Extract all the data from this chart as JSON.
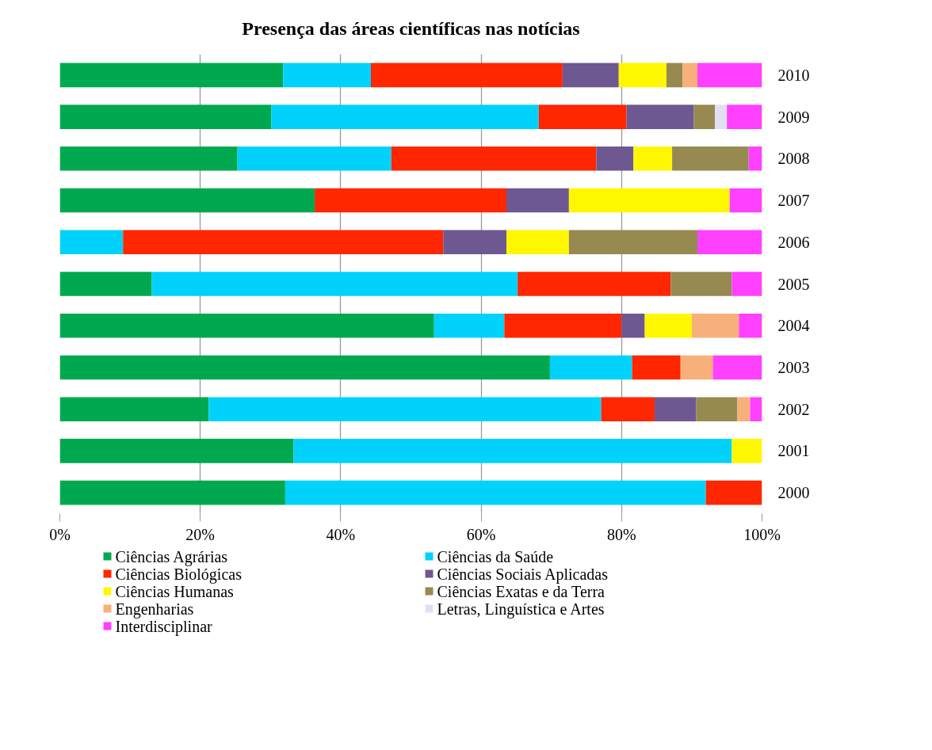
{
  "chart_data": {
    "type": "bar",
    "orientation": "horizontal",
    "stacked": true,
    "title": "Presença das áreas científicas nas notícias",
    "categories": [
      "2010",
      "2009",
      "2008",
      "2007",
      "2006",
      "2005",
      "2004",
      "2003",
      "2002",
      "2001",
      "2000"
    ],
    "series": [
      {
        "name": "Ciências Agrárias",
        "color": "#00a94f",
        "values": [
          31.8,
          30.1,
          25.3,
          36.3,
          null,
          13.1,
          53.3,
          69.8,
          21.2,
          33.3,
          32.1
        ]
      },
      {
        "name": "Ciências da Saúde",
        "color": "#00d2fc",
        "values": [
          12.5,
          38.1,
          21.9,
          null,
          9.0,
          52.1,
          10.0,
          11.7,
          55.9,
          62.4,
          59.9
        ]
      },
      {
        "name": "Ciências Biológicas",
        "color": "#ff2600",
        "values": [
          27.3,
          12.5,
          29.2,
          27.3,
          45.6,
          21.8,
          16.7,
          6.9,
          7.6,
          null,
          8.0
        ]
      },
      {
        "name": "Ciências Sociais Aplicadas",
        "color": "#6e5891",
        "values": [
          8.0,
          9.6,
          5.3,
          8.9,
          9.0,
          null,
          3.3,
          null,
          5.9,
          null,
          null
        ]
      },
      {
        "name": "Ciências Humanas",
        "color": "#fff700",
        "values": [
          6.8,
          null,
          5.5,
          22.9,
          8.9,
          null,
          6.7,
          null,
          null,
          4.3,
          null
        ]
      },
      {
        "name": "Ciências Exatas e da Terra",
        "color": "#968a51",
        "values": [
          2.3,
          3.0,
          10.9,
          null,
          18.3,
          8.7,
          null,
          null,
          5.9,
          null,
          null
        ]
      },
      {
        "name": "Engenharias",
        "color": "#f8b07a",
        "values": [
          2.1,
          null,
          null,
          null,
          null,
          null,
          6.7,
          4.6,
          1.8,
          null,
          null
        ]
      },
      {
        "name": "Letras, Linguística e Artes",
        "color": "#e4dff0",
        "values": [
          null,
          1.7,
          null,
          null,
          null,
          null,
          null,
          null,
          null,
          null,
          null
        ]
      },
      {
        "name": "Interdisciplinar",
        "color": "#ff40ff",
        "values": [
          9.2,
          5.0,
          1.9,
          4.6,
          9.2,
          4.3,
          3.3,
          7.0,
          1.7,
          null,
          null
        ]
      }
    ],
    "xlim": [
      0,
      100
    ],
    "xticks": [
      {
        "value": 0,
        "label": "0%"
      },
      {
        "value": 20,
        "label": "20%"
      },
      {
        "value": 40,
        "label": "40%"
      },
      {
        "value": 60,
        "label": "60%"
      },
      {
        "value": 80,
        "label": "80%"
      },
      {
        "value": 100,
        "label": "100%"
      }
    ],
    "grid": "x",
    "legend": "bottom"
  }
}
